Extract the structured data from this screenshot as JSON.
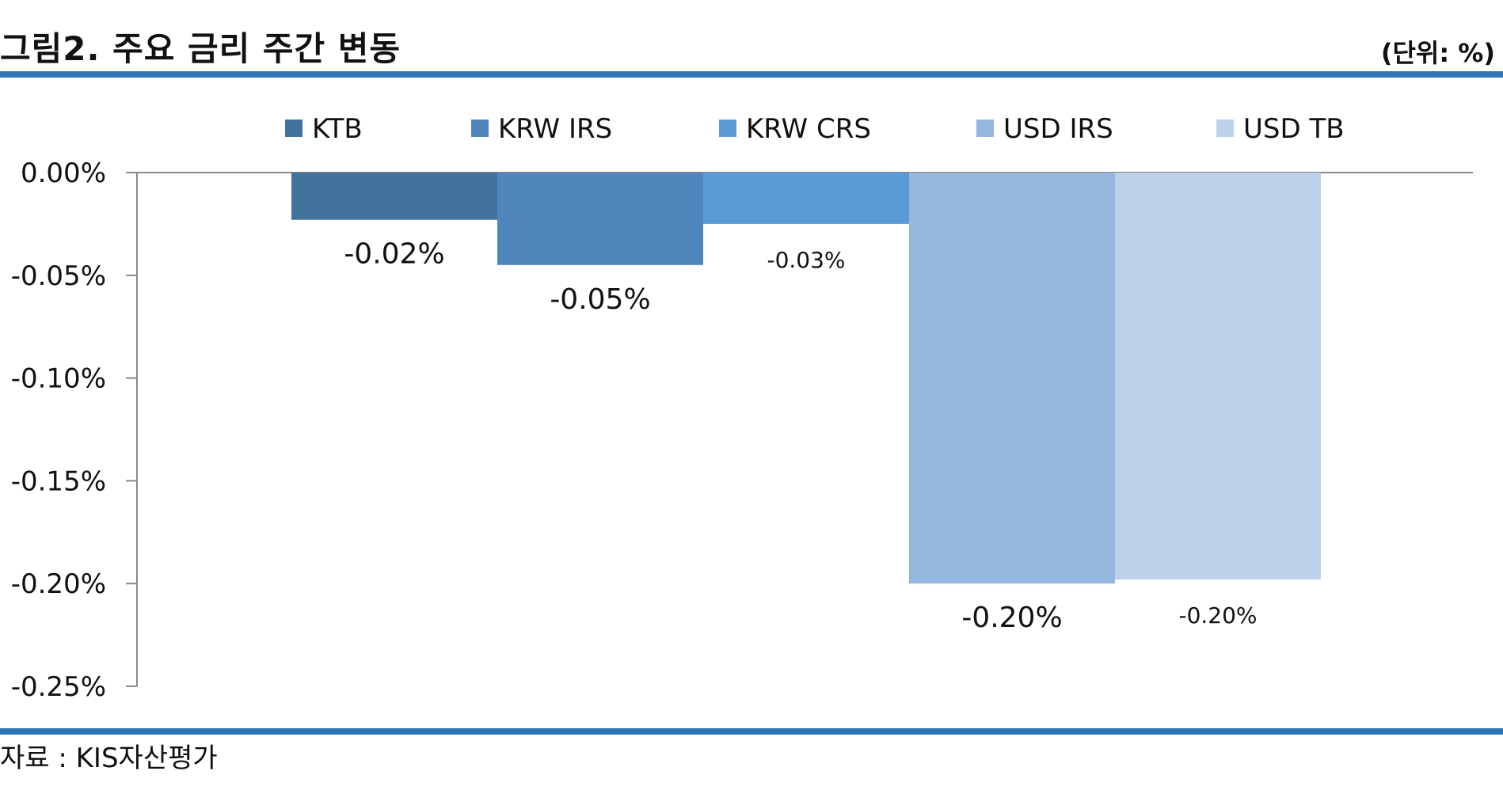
{
  "header": {
    "title": "그림2. 주요 금리 주간 변동",
    "unit": "(단위: %)"
  },
  "footer": {
    "source": "자료 : KIS자산평가"
  },
  "chart_data": {
    "type": "bar",
    "categories": [
      "KTB",
      "KRW IRS",
      "KRW CRS",
      "USD IRS",
      "USD TB"
    ],
    "values": [
      -0.023,
      -0.045,
      -0.025,
      -0.2,
      -0.198
    ],
    "data_labels": [
      "-0.02%",
      "-0.05%",
      "-0.03%",
      "-0.20%",
      "-0.20%"
    ],
    "colors": [
      "#41719c",
      "#4f86bc",
      "#5b9bd5",
      "#95b6de",
      "#bdd1eb"
    ],
    "legend": {
      "placement": "top",
      "entries": [
        "KTB",
        "KRW IRS",
        "KRW CRS",
        "USD IRS",
        "USD TB"
      ]
    },
    "ylim": [
      -0.25,
      0
    ],
    "yticks": [
      0,
      -0.05,
      -0.1,
      -0.15,
      -0.2,
      -0.25
    ],
    "ytick_labels": [
      "0.00%",
      "-0.05%",
      "-0.10%",
      "-0.15%",
      "-0.20%",
      "-0.25%"
    ],
    "grid": false,
    "title": "",
    "xlabel": "",
    "ylabel": ""
  }
}
